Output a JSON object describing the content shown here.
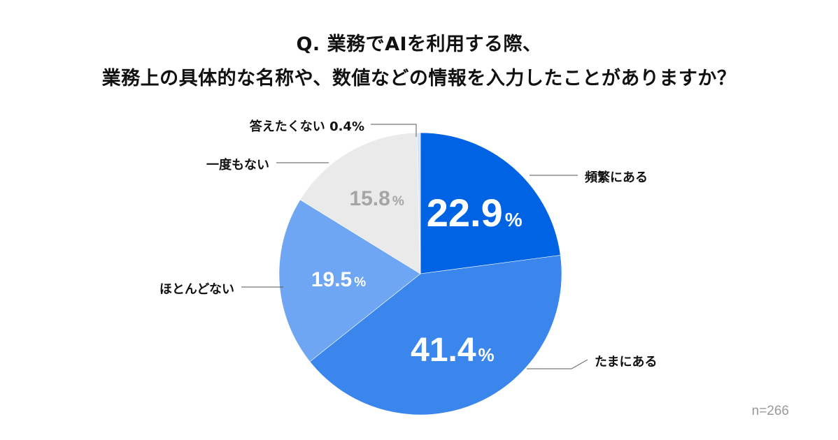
{
  "title": {
    "line1": "Q. 業務でAIを利用する際、",
    "line2": "業務上の具体的な名称や、数値などの情報を入力したことがありますか？"
  },
  "sample_note": "n=266",
  "chart_data": {
    "type": "pie",
    "title": "Q. 業務でAIを利用する際、業務上の具体的な名称や、数値などの情報を入力したことがありますか？",
    "unit": "%",
    "slices": [
      {
        "label": "頻繁にある",
        "value": 22.9,
        "value_label": "22.9",
        "color": "#0063e3",
        "text_color": "#ffffff"
      },
      {
        "label": "たまにある",
        "value": 41.4,
        "value_label": "41.4",
        "color": "#3a86ed",
        "text_color": "#ffffff"
      },
      {
        "label": "ほとんどない",
        "value": 19.5,
        "value_label": "19.5",
        "color": "#6fa6f3",
        "text_color": "#ffffff"
      },
      {
        "label": "一度もない",
        "value": 15.8,
        "value_label": "15.8",
        "color": "#eaeaea",
        "text_color": "#a5a5a5"
      },
      {
        "label": "答えたくない 0.4%",
        "value": 0.4,
        "value_label": "",
        "color": "#d3e3fb",
        "text_color": "#111111"
      }
    ]
  }
}
